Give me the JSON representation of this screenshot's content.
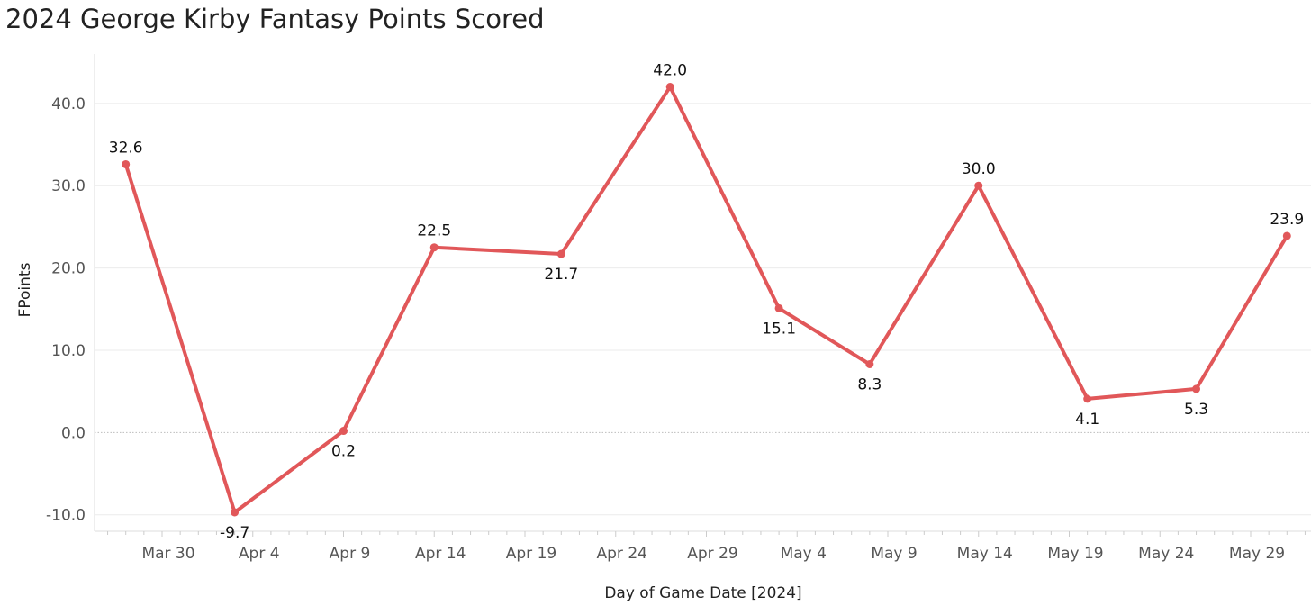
{
  "chart_data": {
    "type": "line",
    "title": "2024 George Kirby Fantasy Points Scored",
    "xlabel": "Day of Game Date [2024]",
    "ylabel": "FPoints",
    "x_tick_labels": [
      "Mar 30",
      "Apr 4",
      "Apr 9",
      "Apr 14",
      "Apr 19",
      "Apr 24",
      "Apr 29",
      "May 4",
      "May 9",
      "May 14",
      "May 19",
      "May 24",
      "May 29"
    ],
    "y_tick_labels": [
      "-10.0",
      "0.0",
      "10.0",
      "20.0",
      "30.0",
      "40.0"
    ],
    "ylim": [
      -12,
      46
    ],
    "y_ticks": [
      -10,
      0,
      10,
      20,
      30,
      40
    ],
    "grid": true,
    "series": [
      {
        "x": [
          "2024-03-28",
          "2024-04-03",
          "2024-04-09",
          "2024-04-14",
          "2024-04-21",
          "2024-04-27",
          "2024-05-03",
          "2024-05-08",
          "2024-05-14",
          "2024-05-20",
          "2024-05-26",
          "2024-05-31"
        ],
        "values": [
          32.6,
          -9.7,
          0.2,
          22.5,
          21.7,
          42.0,
          15.1,
          8.3,
          30.0,
          4.1,
          5.3,
          23.9
        ],
        "labels": [
          "32.6",
          "-9.7",
          "0.2",
          "22.5",
          "21.7",
          "42.0",
          "15.1",
          "8.3",
          "30.0",
          "4.1",
          "5.3",
          "23.9"
        ],
        "label_positions": [
          "above",
          "below",
          "below",
          "above",
          "below",
          "above",
          "below",
          "below",
          "above",
          "below",
          "below",
          "above"
        ]
      }
    ],
    "colors": {
      "line": "#e15759",
      "grid": "#ebebeb",
      "zero_line": "#bdbdbd"
    }
  }
}
